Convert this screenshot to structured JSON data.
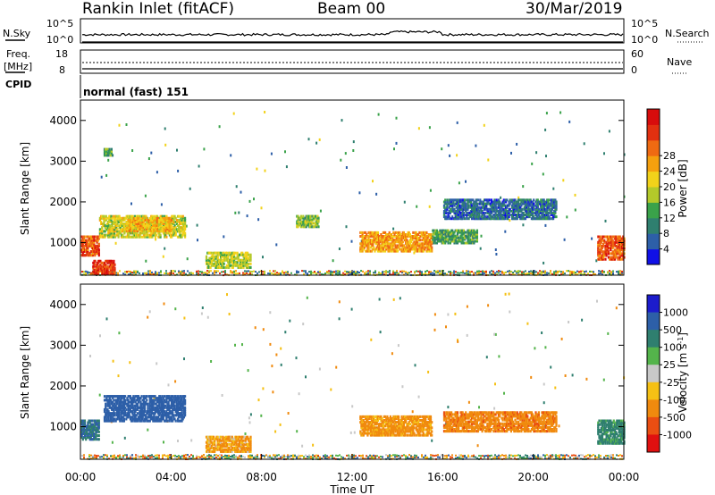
{
  "header": {
    "station": "Rankin Inlet (fitACF)",
    "beam": "Beam 00",
    "date": "30/Mar/2019"
  },
  "top_panels": {
    "nsky": {
      "left_label": "N.Sky",
      "right_label": "N.Search",
      "left_ticks": [
        "10^5",
        "10^0"
      ],
      "right_ticks": [
        "10^5",
        "10^0"
      ]
    },
    "freq": {
      "left_label": "Freq.",
      "left_unit": "[MHz]",
      "right_label": "Nave",
      "left_ticks": [
        "18",
        "8"
      ],
      "right_ticks": [
        "60",
        "0"
      ]
    },
    "cpid": {
      "label": "CPID",
      "value": "normal (fast) 151"
    }
  },
  "axes": {
    "ylabel": "Slant Range [km]",
    "xlabel": "Time UT",
    "y_ticks": [
      "1000",
      "2000",
      "3000",
      "4000"
    ],
    "x_ticks": [
      "00:00",
      "04:00",
      "08:00",
      "12:00",
      "16:00",
      "20:00",
      "00:00"
    ]
  },
  "colorbars": {
    "power": {
      "label": "Power [dB]",
      "ticks": [
        "4",
        "8",
        "12",
        "16",
        "20",
        "24",
        "28"
      ],
      "colors": [
        "#1010e6",
        "#2d5fa8",
        "#2f7f6f",
        "#3aa24a",
        "#b3c92a",
        "#f2d21a",
        "#f5a00e",
        "#ef6a12",
        "#e23010",
        "#d80c0c"
      ]
    },
    "velocity": {
      "label": "Velocity [m s^-1]",
      "ticks": [
        "1000",
        "500",
        "100",
        "25",
        "-25",
        "-100",
        "-500",
        "-1000"
      ],
      "colors": [
        "#1c1ccc",
        "#2d5fa8",
        "#2f7f6f",
        "#54b44b",
        "#c8c8c8",
        "#f5c014",
        "#f08a0e",
        "#ea4e12",
        "#e01010"
      ]
    }
  },
  "chart_data": {
    "type": "heatmap",
    "title": "Rankin Inlet (fitACF)",
    "subtitle": "Beam 00",
    "xlabel": "Time UT",
    "ylabel": "Slant Range [km]",
    "xlim_hours": [
      0,
      24
    ],
    "ylim_km": [
      200,
      4500
    ],
    "power_range_db": [
      0,
      30
    ],
    "velocity_range_ms": [
      -1000,
      1000
    ],
    "power_clusters": [
      {
        "t": [
          0.0,
          0.8
        ],
        "r": [
          700,
          1200
        ],
        "power": 24
      },
      {
        "t": [
          0.5,
          1.5
        ],
        "r": [
          250,
          600
        ],
        "power": 26
      },
      {
        "t": [
          1.0,
          1.4
        ],
        "r": [
          3150,
          3350
        ],
        "power": 10
      },
      {
        "t": [
          0.8,
          4.6
        ],
        "r": [
          1150,
          1700
        ],
        "power": 15
      },
      {
        "t": [
          2.0,
          4.0
        ],
        "r": [
          1300,
          1650
        ],
        "power": 18
      },
      {
        "t": [
          5.5,
          7.5
        ],
        "r": [
          400,
          800
        ],
        "power": 14
      },
      {
        "t": [
          9.5,
          10.5
        ],
        "r": [
          1400,
          1700
        ],
        "power": 12
      },
      {
        "t": [
          12.3,
          15.5
        ],
        "r": [
          800,
          1300
        ],
        "power": 20
      },
      {
        "t": [
          15.5,
          17.5
        ],
        "r": [
          1000,
          1350
        ],
        "power": 10
      },
      {
        "t": [
          16.0,
          21.0
        ],
        "r": [
          1600,
          2100
        ],
        "power": 6
      },
      {
        "t": [
          22.8,
          24.0
        ],
        "r": [
          600,
          1200
        ],
        "power": 24
      }
    ],
    "velocity_clusters": [
      {
        "t": [
          0.0,
          0.8
        ],
        "r": [
          700,
          1200
        ],
        "velocity": 500
      },
      {
        "t": [
          1.0,
          4.6
        ],
        "r": [
          1150,
          1800
        ],
        "velocity": 800
      },
      {
        "t": [
          5.5,
          7.5
        ],
        "r": [
          400,
          800
        ],
        "velocity": -150
      },
      {
        "t": [
          12.3,
          15.5
        ],
        "r": [
          800,
          1300
        ],
        "velocity": -200
      },
      {
        "t": [
          16.0,
          21.0
        ],
        "r": [
          900,
          1400
        ],
        "velocity": -400
      },
      {
        "t": [
          22.8,
          24.0
        ],
        "r": [
          600,
          1200
        ],
        "velocity": 200
      }
    ]
  }
}
